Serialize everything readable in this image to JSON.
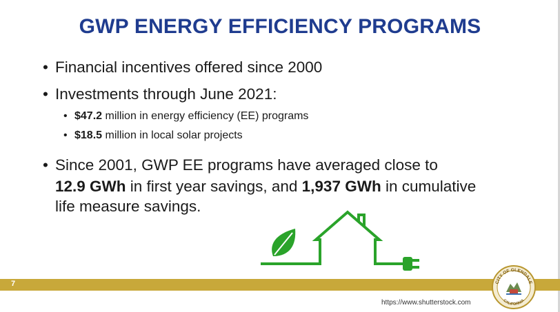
{
  "title": "GWP ENERGY EFFICIENCY PROGRAMS",
  "bullets": {
    "b1": "Financial incentives offered since 2000",
    "b2": "Investments through June 2021:",
    "sub1_bold": "$47.2",
    "sub1_rest": " million in energy efficiency (EE) programs",
    "sub2_bold": "$18.5",
    "sub2_rest": " million in local solar projects",
    "b3_line1": "Since 2001, GWP EE programs have averaged close to",
    "b3_bold1": "12.9 GWh",
    "b3_mid": " in first year savings, and ",
    "b3_bold2": "1,937 GWh",
    "b3_end": " in cumulative",
    "b3_line3": "life measure savings."
  },
  "bullet_glyph": "•",
  "footer": {
    "page_number": "7",
    "source": "https://www.shutterstock.com",
    "seal_top_text": "CITY OF GLENDALE",
    "seal_bottom_text": "CALIFORNIA"
  },
  "colors": {
    "title": "#1f3c8f",
    "accent_green": "#2aa32a",
    "gold_bar": "#c8a83a"
  },
  "icons": [
    "leaf-icon",
    "house-icon",
    "plug-icon",
    "city-seal-icon"
  ]
}
